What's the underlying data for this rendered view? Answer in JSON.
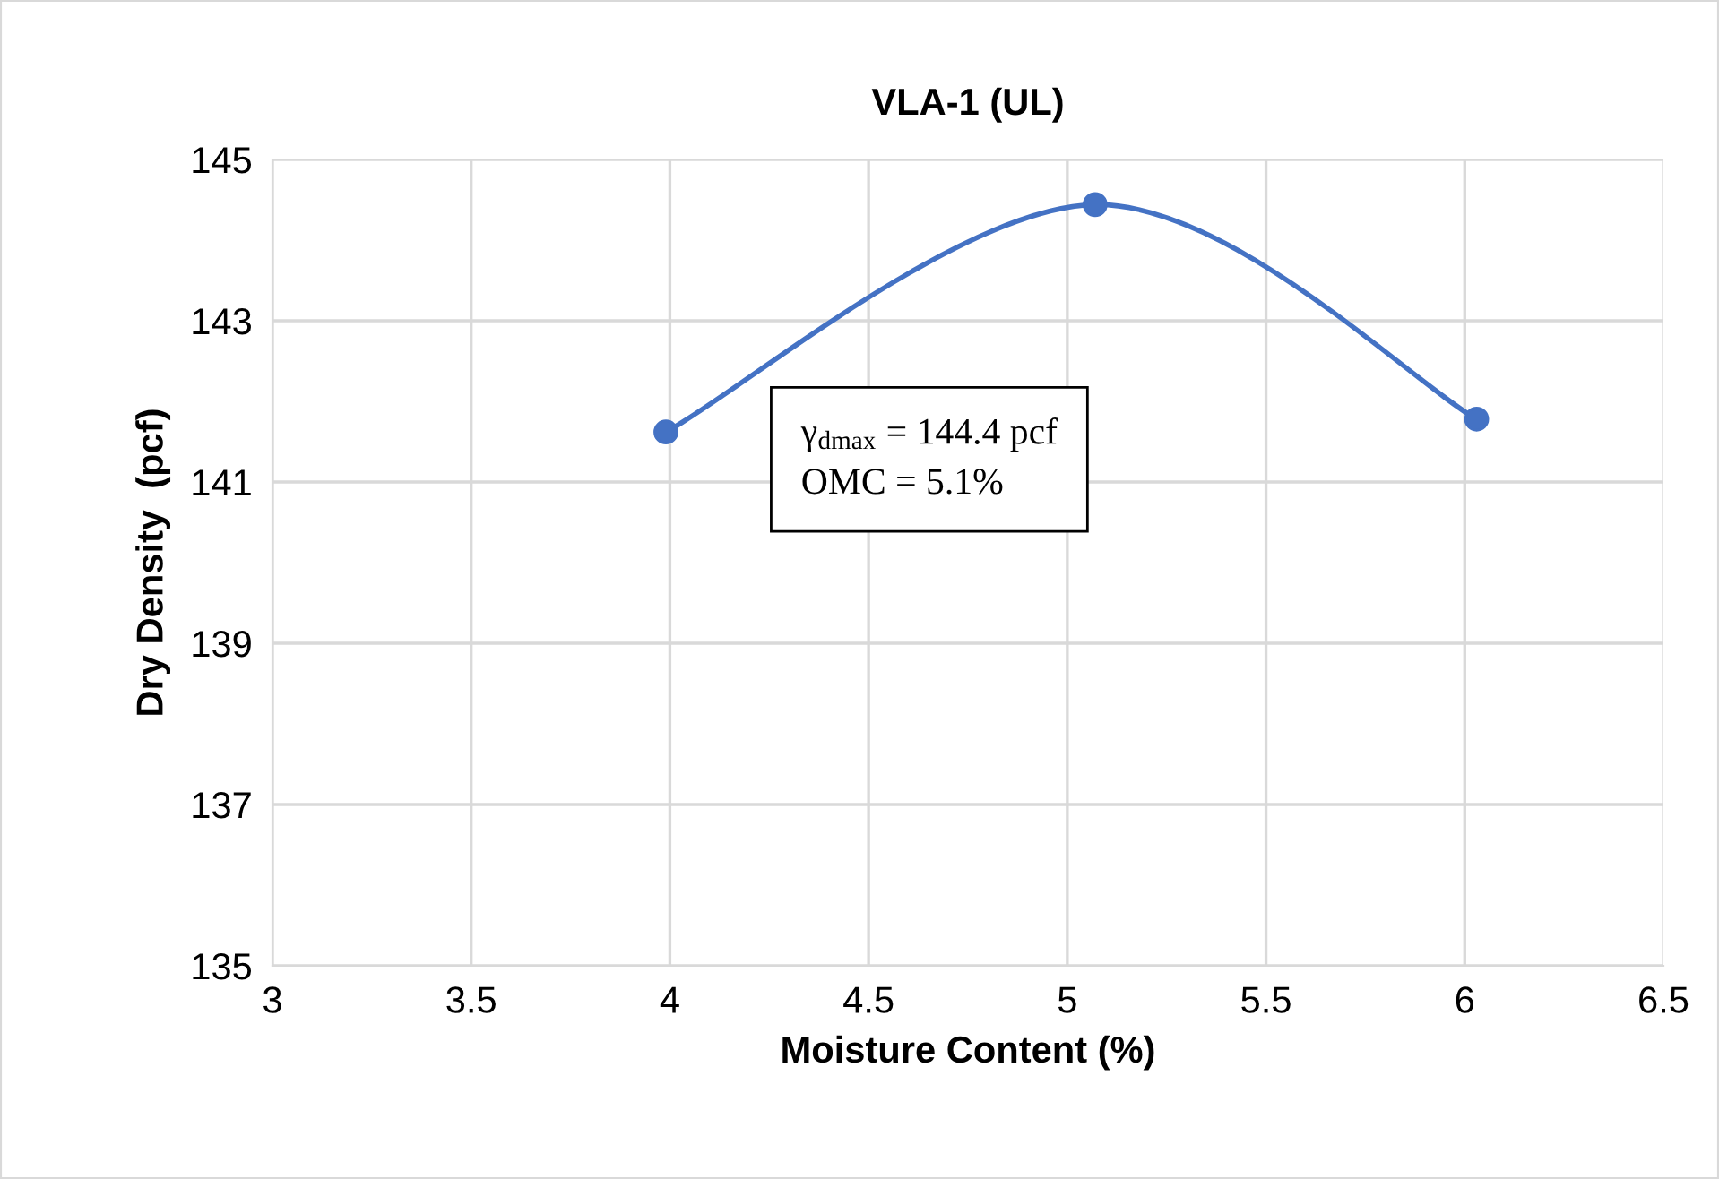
{
  "chart_data": {
    "type": "line",
    "title": "VLA-1 (UL)",
    "xlabel": "Moisture Content (%)",
    "ylabel": "Dry Density  (pcf)",
    "x": [
      3.99,
      5.07,
      6.03
    ],
    "series": [
      {
        "color": "#4472c4",
        "values": [
          141.62,
          144.44,
          141.78
        ]
      }
    ],
    "xlim": [
      3,
      6.5
    ],
    "xticks": [
      3,
      3.5,
      4,
      4.5,
      5,
      5.5,
      6,
      6.5
    ],
    "ylim": [
      135,
      145
    ],
    "yticks": [
      135,
      137,
      139,
      141,
      143,
      145
    ],
    "grid": true,
    "marker": "circle",
    "line_style": "solid",
    "annotations": [
      "γ$_{dmax}$ = 144.4 pcf\nOMC = 5.1%"
    ]
  }
}
